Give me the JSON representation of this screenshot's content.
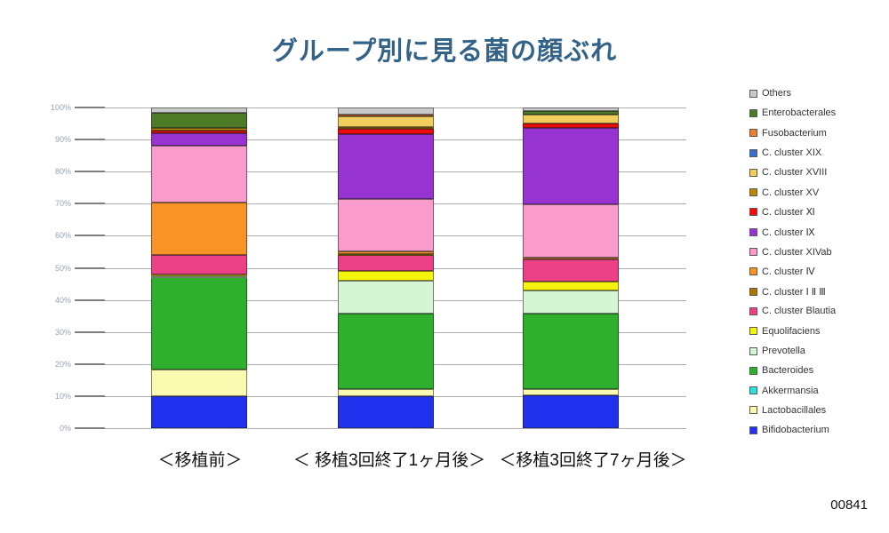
{
  "title": "グループ別に見る菌の顔ぶれ",
  "page_number": "00841",
  "chart_data": {
    "type": "bar",
    "stacked": true,
    "unit": "percent",
    "title": "グループ別に見る菌の顔ぶれ",
    "categories": [
      "＜移植前＞",
      "＜ 移植3回終了1ヶ月後＞",
      "＜移植3回終了7ヶ月後＞"
    ],
    "ylim": [
      0,
      100
    ],
    "ytick_labels": [
      "100%",
      "90%",
      "80%",
      "70%",
      "60%",
      "50%",
      "40%",
      "30%",
      "20%",
      "10%",
      "0%"
    ],
    "grid": true,
    "legend_position": "right",
    "legend_order": "top-to-bottom is reverse of stacking order",
    "series": [
      {
        "name": "Bifidobacterium",
        "color": "#2231ee",
        "values": [
          10.0,
          10.1,
          10.2
        ]
      },
      {
        "name": "Lactobacillales",
        "color": "#fafab0",
        "values": [
          8.3,
          2.1,
          1.9
        ]
      },
      {
        "name": "Akkermansia",
        "color": "#2fe0dc",
        "values": [
          0,
          0,
          0
        ]
      },
      {
        "name": "Bacteroides",
        "color": "#2eb02e",
        "values": [
          28.7,
          23.4,
          23.7
        ]
      },
      {
        "name": "Prevotella",
        "color": "#d5f5d5",
        "values": [
          0.4,
          10.4,
          7.2
        ]
      },
      {
        "name": "Equolifaciens",
        "color": "#f4f40c",
        "values": [
          0.6,
          3.0,
          2.8
        ]
      },
      {
        "name": "C. cluster Blautia",
        "color": "#ec4187",
        "values": [
          6.0,
          5.2,
          6.9
        ]
      },
      {
        "name": "C. cluster Ⅰ Ⅱ Ⅲ",
        "color": "#a87800",
        "values": [
          0,
          0.2,
          0
        ]
      },
      {
        "name": "C. cluster Ⅳ",
        "color": "#f89327",
        "values": [
          16.4,
          0.8,
          0.5
        ]
      },
      {
        "name": "C. cluster XIVab",
        "color": "#f99bcb",
        "values": [
          17.6,
          16.3,
          16.6
        ]
      },
      {
        "name": "C. cluster Ⅸ",
        "color": "#9733d0",
        "values": [
          4.0,
          20.3,
          23.7
        ]
      },
      {
        "name": "C. cluster Ⅺ",
        "color": "#ee0b0b",
        "values": [
          0.8,
          1.5,
          1.4
        ]
      },
      {
        "name": "C. cluster XV",
        "color": "#b8860b",
        "values": [
          0.9,
          0.7,
          0
        ]
      },
      {
        "name": "C. cluster XVIII",
        "color": "#f2ce5e",
        "values": [
          0,
          3.2,
          2.9
        ]
      },
      {
        "name": "C. cluster XIX",
        "color": "#3b6cc8",
        "values": [
          0,
          0,
          0
        ]
      },
      {
        "name": "Fusobacterium",
        "color": "#ee7d2e",
        "values": [
          0,
          0.5,
          0
        ]
      },
      {
        "name": "Enterobacterales",
        "color": "#4c7a28",
        "values": [
          4.6,
          0,
          1.1
        ]
      },
      {
        "name": "Others",
        "color": "#c9c9c9",
        "values": [
          1.7,
          2.3,
          1.1
        ]
      }
    ]
  }
}
